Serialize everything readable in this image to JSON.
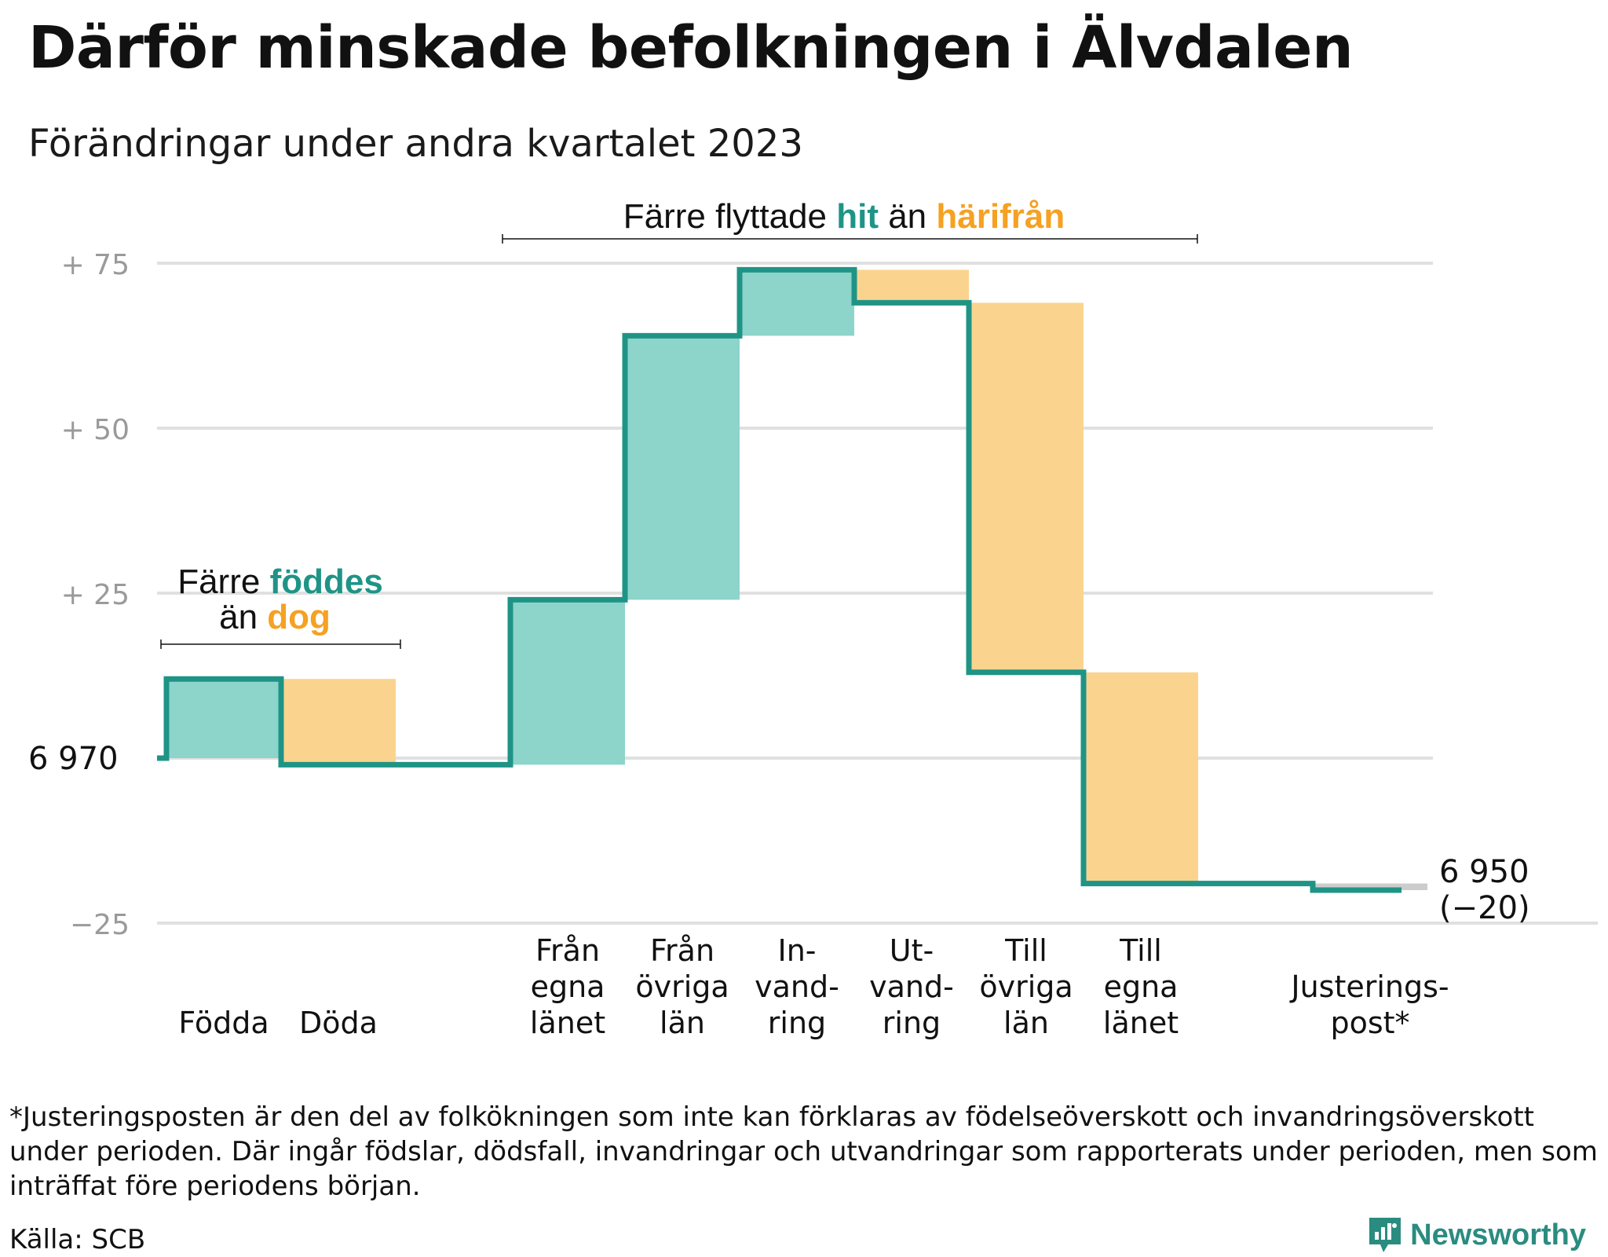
{
  "title": "Därför minskade befolkningen i Älvdalen",
  "subtitle": "Förändringar under andra kvartalet 2023",
  "chart_data": {
    "type": "waterfall",
    "start_label": "6 970",
    "end_label": "6 950",
    "end_change_label": "(−20)",
    "ylim": [
      -25,
      75
    ],
    "yticks": [
      {
        "value": -25,
        "label": "−25"
      },
      {
        "value": 0,
        "label": "6  970"
      },
      {
        "value": 25,
        "label": "+  25"
      },
      {
        "value": 50,
        "label": "+  50"
      },
      {
        "value": 75,
        "label": "+  75"
      }
    ],
    "steps": [
      {
        "label_lines": [
          "Födda"
        ],
        "value": 12,
        "kind": "in"
      },
      {
        "label_lines": [
          "Döda"
        ],
        "value": -13,
        "kind": "out"
      },
      {
        "label_lines": [],
        "value": 0,
        "kind": "gap"
      },
      {
        "label_lines": [
          "Från",
          "egna",
          "länet"
        ],
        "value": 25,
        "kind": "in"
      },
      {
        "label_lines": [
          "Från",
          "övriga",
          "län"
        ],
        "value": 40,
        "kind": "in"
      },
      {
        "label_lines": [
          "In-",
          "vand-",
          "ring"
        ],
        "value": 10,
        "kind": "in"
      },
      {
        "label_lines": [
          "Ut-",
          "vand-",
          "ring"
        ],
        "value": -5,
        "kind": "out"
      },
      {
        "label_lines": [
          "Till",
          "övriga",
          "län"
        ],
        "value": -56,
        "kind": "out"
      },
      {
        "label_lines": [
          "Till",
          "egna",
          "länet"
        ],
        "value": -32,
        "kind": "out"
      },
      {
        "label_lines": [],
        "value": 0,
        "kind": "gap"
      },
      {
        "label_lines": [
          "Justerings-",
          "post*"
        ],
        "value": -1,
        "kind": "adj"
      }
    ],
    "annotations": {
      "births": {
        "line1_plain": "Färre ",
        "line1_hl": "föddes",
        "line2_plain": "än ",
        "line2_hl": "dog"
      },
      "migration": {
        "plain1": "Färre flyttade ",
        "hl1": "hit",
        "plain2": " än ",
        "hl2": "härifrån"
      }
    },
    "colors": {
      "in_fill": "#8dd4cb",
      "out_fill": "#fad48f",
      "adj_fill": "#cccccc",
      "line": "#1f9486",
      "teal_text": "#1f9486",
      "orange_text": "#f5a122",
      "grid": "#e0e0e0",
      "tick": "#9a9a9a"
    }
  },
  "footnote": "*Justeringsposten är den del av folkökningen som inte kan förklaras av födelseöverskott och invandringsöverskott under perioden. Där ingår födslar, dödsfall, invandringar och utvandringar som rapporterats under perioden, men som inträffat före periodens början.",
  "source": "Källa: SCB",
  "brand": "Newsworthy"
}
